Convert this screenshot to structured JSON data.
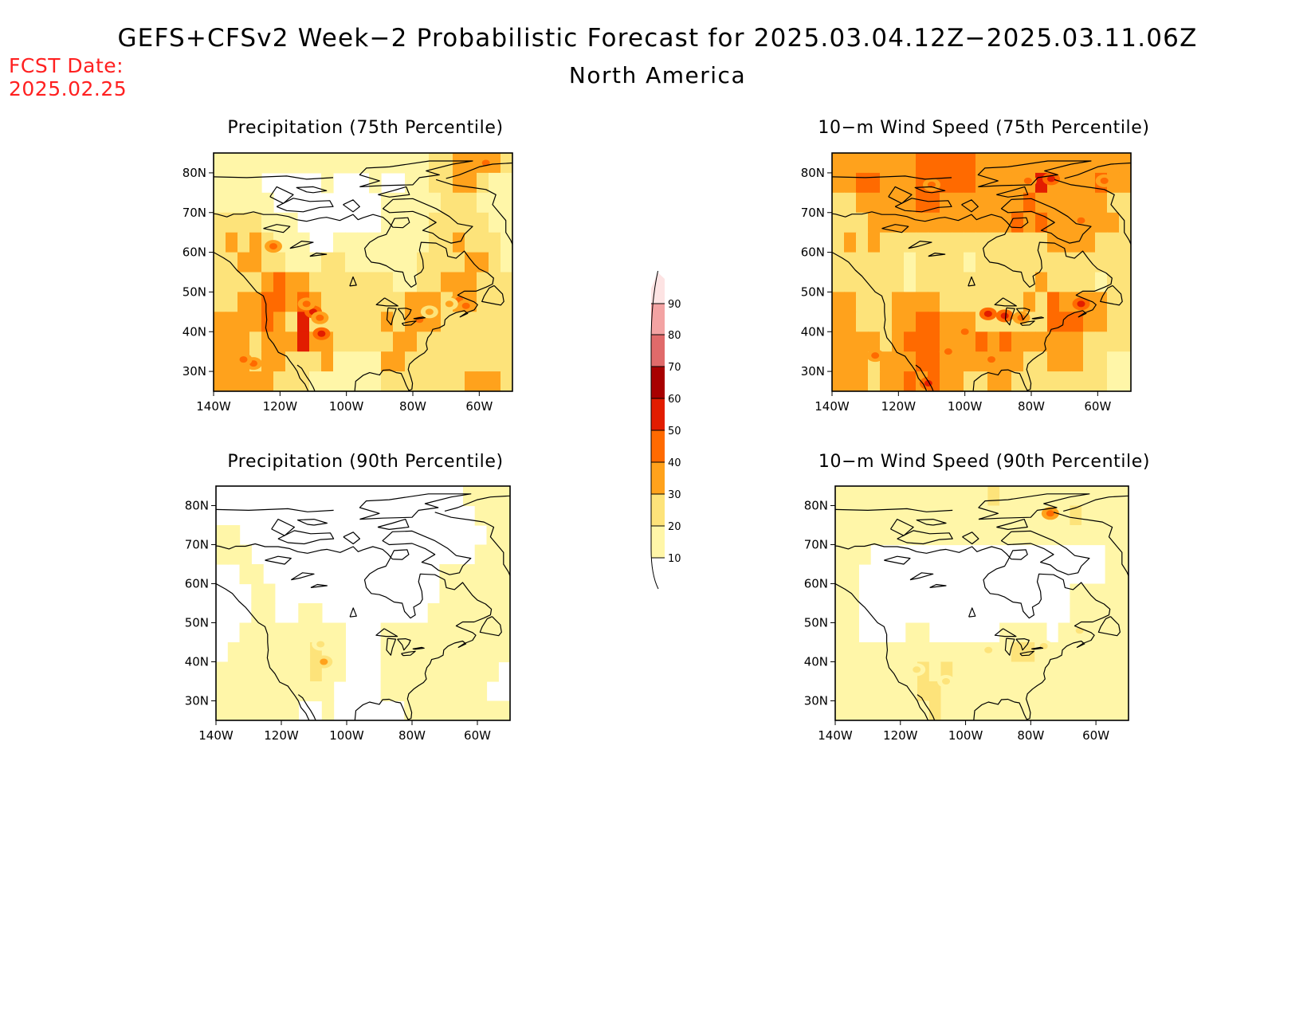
{
  "title": "GEFS+CFSv2 Week−2 Probabilistic Forecast for 2025.03.04.12Z−2025.03.11.06Z",
  "subtitle": "North America",
  "forecast_date": {
    "label": "FCST Date:",
    "value": "2025.02.25"
  },
  "colors": {
    "fcst_date": "#ff2020",
    "bins": [
      "#ffffff",
      "#fff6a8",
      "#fde37a",
      "#ffa21c",
      "#ff6a00",
      "#e21d00",
      "#a80000",
      "#e06a6a",
      "#f3a3a3",
      "#fde3e3"
    ]
  },
  "colorbar": {
    "levels": [
      "10",
      "20",
      "30",
      "40",
      "50",
      "60",
      "70",
      "80",
      "90"
    ]
  },
  "axes": {
    "lat_ticks": [
      "30N",
      "40N",
      "50N",
      "60N",
      "70N",
      "80N"
    ],
    "lon_ticks": [
      "140W",
      "120W",
      "100W",
      "80W",
      "60W"
    ]
  },
  "panels": [
    {
      "id": "precip75",
      "title": "Precipitation (75th Percentile)"
    },
    {
      "id": "wind75",
      "title": "10−m Wind Speed (75th Percentile)"
    },
    {
      "id": "precip90",
      "title": "Precipitation (90th Percentile)"
    },
    {
      "id": "wind90",
      "title": "10−m Wind Speed (90th Percentile)"
    }
  ]
}
